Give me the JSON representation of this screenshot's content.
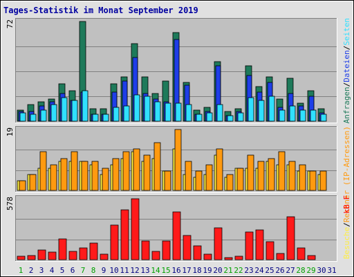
{
  "title": "Tages-Statistik im Monat September 2019",
  "colors": {
    "frame_bg": "#e0e0e0",
    "title_text": "#0000a0",
    "panel_bg": "#c0c0c0",
    "grid": "#808080",
    "anfragen": "#1e7a5a",
    "dateien": "#1e3ee8",
    "seiten": "#30e0ff",
    "besuche": "#ffee40",
    "rechner": "#ff9a10",
    "kb": "#ff1a1a",
    "day_weekday": "#000080",
    "day_weekend": "#00a000",
    "rechner_label": "#ff8000",
    "kb_label": "#ff0000"
  },
  "chart_data": [
    {
      "type": "bar",
      "panel": "top",
      "max_label": "72",
      "ylim": [
        0,
        72
      ],
      "legend": [
        {
          "label": "Anfragen",
          "color": "#1e7a5a"
        },
        {
          "label": "Dateien",
          "color": "#1e3ee8"
        },
        {
          "label": "Seiten",
          "color": "#30e0ff"
        }
      ],
      "legend_separator": "/",
      "categories": [
        "1",
        "2",
        "3",
        "4",
        "5",
        "6",
        "7",
        "8",
        "9",
        "10",
        "11",
        "12",
        "13",
        "14",
        "15",
        "16",
        "17",
        "18",
        "19",
        "20",
        "21",
        "22",
        "23",
        "24",
        "25",
        "26",
        "27",
        "28",
        "29",
        "30"
      ],
      "series": [
        {
          "name": "Anfragen",
          "values": [
            8,
            12,
            14,
            16,
            27,
            22,
            72,
            9,
            9,
            27,
            32,
            56,
            32,
            20,
            29,
            64,
            28,
            8,
            10,
            43,
            7,
            9,
            40,
            25,
            32,
            16,
            31,
            13,
            22,
            9
          ]
        },
        {
          "name": "Dateien",
          "values": [
            7,
            7,
            11,
            14,
            20,
            15,
            21,
            5,
            5,
            21,
            29,
            46,
            20,
            16,
            14,
            59,
            26,
            5,
            7,
            40,
            4,
            7,
            33,
            21,
            28,
            10,
            20,
            11,
            18,
            6
          ]
        },
        {
          "name": "Seiten",
          "values": [
            6,
            5,
            8,
            12,
            17,
            15,
            22,
            5,
            5,
            10,
            11,
            19,
            18,
            14,
            13,
            13,
            12,
            5,
            6,
            12,
            4,
            6,
            17,
            15,
            18,
            8,
            11,
            8,
            8,
            5
          ]
        }
      ]
    },
    {
      "type": "bar",
      "panel": "middle",
      "max_label": "19",
      "ylim": [
        0,
        19
      ],
      "legend": [
        {
          "label": "Besuche",
          "color": "#ffee40"
        },
        {
          "label": "Rechner (IP-Adressen)",
          "color": "#ff9a10"
        }
      ],
      "legend_separator": "/",
      "categories": [
        "1",
        "2",
        "3",
        "4",
        "5",
        "6",
        "7",
        "8",
        "9",
        "10",
        "11",
        "12",
        "13",
        "14",
        "15",
        "16",
        "17",
        "18",
        "19",
        "20",
        "21",
        "22",
        "23",
        "24",
        "25",
        "26",
        "27",
        "28",
        "29",
        "30"
      ],
      "series": [
        {
          "name": "Besuche",
          "values": [
            3,
            5,
            7,
            7,
            9,
            9,
            9,
            8,
            5,
            8,
            10,
            12,
            9,
            10,
            6,
            13,
            5,
            4,
            5,
            11,
            4,
            7,
            7,
            7,
            9,
            8,
            8,
            6,
            6,
            5
          ]
        },
        {
          "name": "Rechner (IP-Adressen)",
          "values": [
            3,
            5,
            12,
            8,
            10,
            12,
            9,
            9,
            7,
            10,
            12,
            13,
            11,
            15,
            6,
            19,
            9,
            6,
            8,
            13,
            5,
            7,
            11,
            9,
            10,
            12,
            9,
            8,
            6,
            6
          ]
        }
      ]
    },
    {
      "type": "bar",
      "panel": "bottom",
      "max_label": "578",
      "ylim": [
        0,
        578
      ],
      "legend": [
        {
          "label": "kB F",
          "color": "#ff0000"
        }
      ],
      "categories": [
        "1",
        "2",
        "3",
        "4",
        "5",
        "6",
        "7",
        "8",
        "9",
        "10",
        "11",
        "12",
        "13",
        "14",
        "15",
        "16",
        "17",
        "18",
        "19",
        "20",
        "21",
        "22",
        "23",
        "24",
        "25",
        "26",
        "27",
        "28",
        "29",
        "30"
      ],
      "series": [
        {
          "name": "kB F",
          "values": [
            30,
            40,
            90,
            70,
            200,
            80,
            110,
            160,
            50,
            330,
            470,
            578,
            180,
            80,
            180,
            450,
            230,
            130,
            50,
            300,
            20,
            30,
            260,
            280,
            170,
            60,
            410,
            110,
            40,
            0
          ]
        }
      ]
    }
  ],
  "x_axis": {
    "labels": [
      "1",
      "2",
      "3",
      "4",
      "5",
      "6",
      "7",
      "8",
      "9",
      "10",
      "11",
      "12",
      "13",
      "14",
      "15",
      "16",
      "17",
      "18",
      "19",
      "20",
      "21",
      "22",
      "23",
      "24",
      "25",
      "26",
      "27",
      "28",
      "29",
      "30",
      "31"
    ],
    "weekend": [
      1,
      7,
      8,
      14,
      15,
      21,
      22,
      28,
      29
    ]
  }
}
